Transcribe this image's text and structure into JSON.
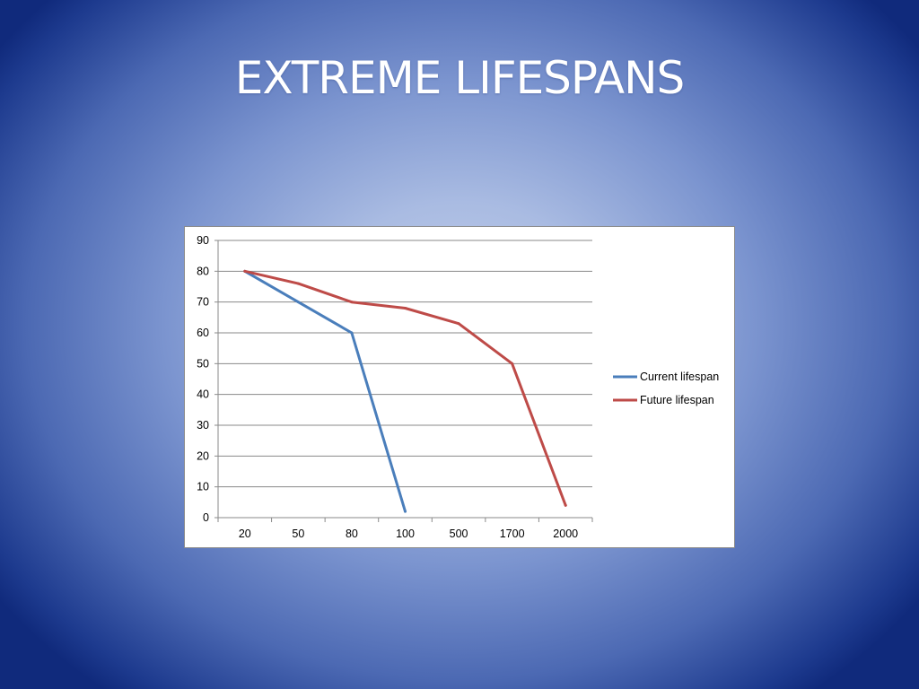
{
  "slide": {
    "title": "EXTREME LIFESPANS"
  },
  "chart_data": {
    "type": "line",
    "categories": [
      "20",
      "50",
      "80",
      "100",
      "500",
      "1700",
      "2000"
    ],
    "series": [
      {
        "name": "Current lifespan",
        "color": "#4a7ebb",
        "values": [
          80,
          70,
          60,
          2,
          null,
          null,
          null
        ]
      },
      {
        "name": "Future lifespan",
        "color": "#be4b48",
        "values": [
          80,
          76,
          70,
          68,
          63,
          50,
          4
        ]
      }
    ],
    "ylim": [
      0,
      90
    ],
    "yticks": [
      0,
      10,
      20,
      30,
      40,
      50,
      60,
      70,
      80,
      90
    ],
    "grid": true,
    "legend_position": "right",
    "title": "",
    "xlabel": "",
    "ylabel": ""
  }
}
